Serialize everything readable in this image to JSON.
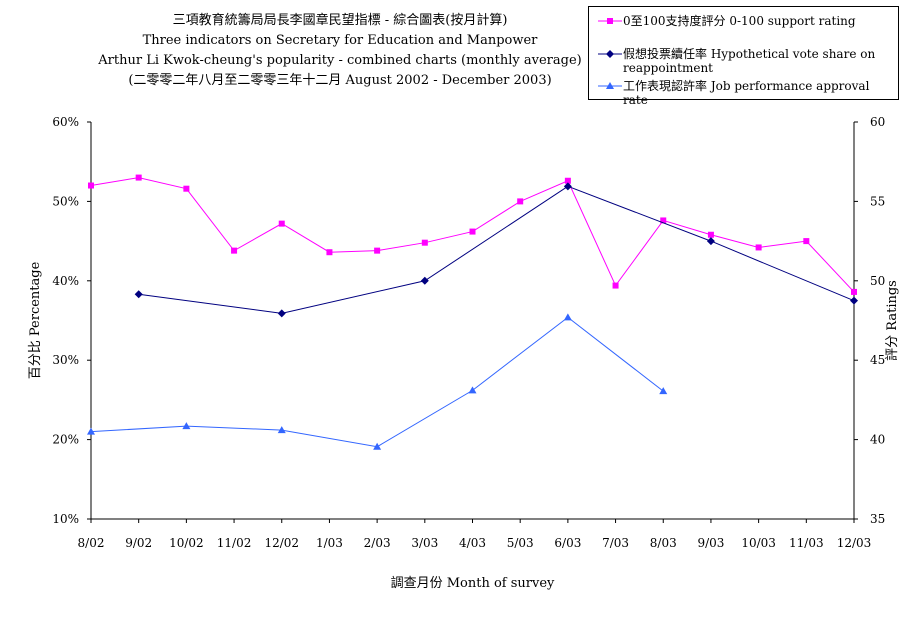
{
  "chart_data": {
    "type": "line",
    "title": [
      "三項教育統籌局局長李國章民望指標 - 綜合圖表(按月計算)",
      "Three indicators on Secretary for Education and Manpower",
      "Arthur Li Kwok-cheung's popularity - combined charts (monthly average)",
      "(二零零二年八月至二零零三年十二月 August 2002 - December 2003)"
    ],
    "xlabel": "調查月份  Month of survey",
    "ylabel": "百分比  Percentage",
    "y2label": "評分  Ratings",
    "categories": [
      "8/02",
      "9/02",
      "10/02",
      "11/02",
      "12/02",
      "1/03",
      "2/03",
      "3/03",
      "4/03",
      "5/03",
      "6/03",
      "7/03",
      "8/03",
      "9/03",
      "10/03",
      "11/03",
      "12/03"
    ],
    "ylim": [
      0.1,
      0.6
    ],
    "y_ticks": [
      "10%",
      "20%",
      "30%",
      "40%",
      "50%",
      "60%"
    ],
    "y2lim": [
      35,
      60
    ],
    "y2_ticks": [
      "35",
      "40",
      "45",
      "50",
      "55",
      "60"
    ],
    "grid": false,
    "legend_position": "top-right",
    "series": [
      {
        "name": "0至100支持度評分  0-100 support rating",
        "axis": "right",
        "color": "#FF00FF",
        "marker": "square",
        "values": [
          56.0,
          56.5,
          55.8,
          51.9,
          53.6,
          51.8,
          51.9,
          52.4,
          53.1,
          55.0,
          56.3,
          49.7,
          53.8,
          52.9,
          52.1,
          52.5,
          49.3
        ]
      },
      {
        "name": "假想投票續任率  Hypothetical vote share on reappointment",
        "axis": "left",
        "color": "#000080",
        "marker": "diamond",
        "values": [
          null,
          0.383,
          null,
          null,
          0.359,
          null,
          null,
          0.4,
          null,
          null,
          0.519,
          null,
          null,
          0.45,
          null,
          null,
          0.375
        ]
      },
      {
        "name": "工作表現認許率  Job performance approval rate",
        "axis": "left",
        "color": "#3366FF",
        "marker": "triangle",
        "values": [
          0.21,
          null,
          0.217,
          null,
          0.212,
          null,
          0.191,
          null,
          0.262,
          null,
          0.354,
          null,
          0.261,
          null,
          null,
          null,
          null
        ]
      }
    ]
  }
}
